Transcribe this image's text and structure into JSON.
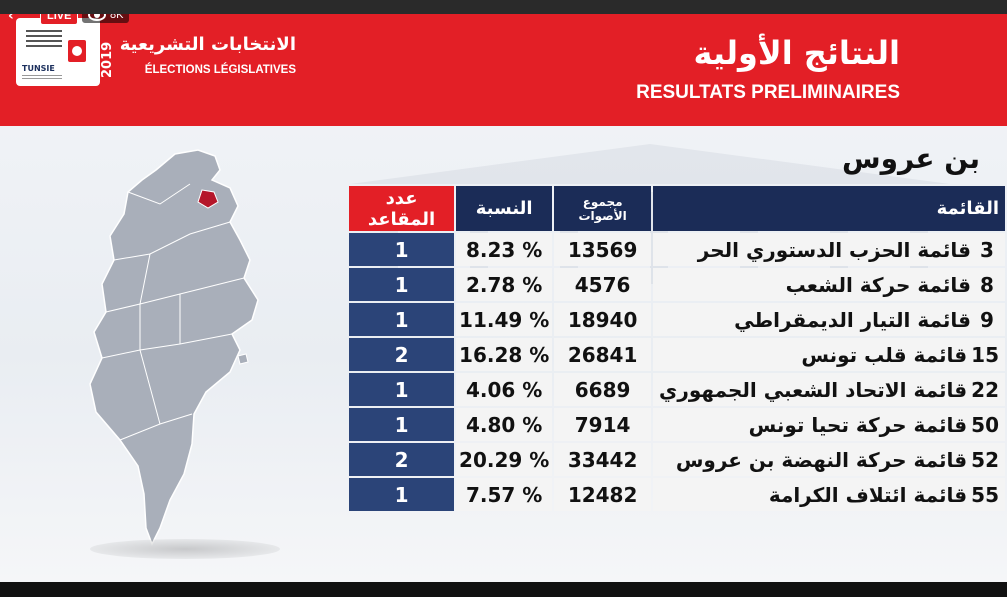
{
  "stream": {
    "back_glyph": "‹",
    "live_label": "LIVE",
    "viewers": "8K",
    "viewers_icon": "eye-icon"
  },
  "header": {
    "logo_text": "TUNSIE",
    "year": "2019",
    "election_ar": "الانتخابات التشريعية",
    "election_fr": "ÉLECTIONS LÉGISLATIVES",
    "title_ar": "النتائج الأولية",
    "title_fr": "RESULTATS PRELIMINAIRES",
    "bg_color": "#e31f26"
  },
  "region": "بن عروس",
  "table": {
    "headers": {
      "list": "القائمة",
      "votes": "مجموع الأصوات",
      "pct": "النسبة",
      "seats": "عدد المقاعد"
    },
    "rows": [
      {
        "num": "3",
        "name": "قائمة الحزب الدستوري الحر",
        "votes": "13569",
        "pct": "8.23 %",
        "seats": "1"
      },
      {
        "num": "8",
        "name": "قائمة حركة الشعب",
        "votes": "4576",
        "pct": "2.78 %",
        "seats": "1"
      },
      {
        "num": "9",
        "name": "قائمة التيار الديمقراطي",
        "votes": "18940",
        "pct": "11.49 %",
        "seats": "1"
      },
      {
        "num": "15",
        "name": "قائمة قلب تونس",
        "votes": "26841",
        "pct": "16.28 %",
        "seats": "2"
      },
      {
        "num": "22",
        "name": "قائمة الاتحاد الشعبي الجمهوري",
        "votes": "6689",
        "pct": "4.06 %",
        "seats": "1"
      },
      {
        "num": "50",
        "name": "قائمة حركة تحيا تونس",
        "votes": "7914",
        "pct": "4.80 %",
        "seats": "1"
      },
      {
        "num": "52",
        "name": "قائمة حركة النهضة بن عروس",
        "votes": "33442",
        "pct": "20.29 %",
        "seats": "2"
      },
      {
        "num": "55",
        "name": "قائمة ائتلاف الكرامة",
        "votes": "12482",
        "pct": "7.57 %",
        "seats": "1"
      }
    ]
  },
  "colors": {
    "header_navy": "#1b2c57",
    "seats_header_red": "#e31f26",
    "seats_cell_blue": "#2b4478",
    "highlight_region": "#b5162a"
  }
}
